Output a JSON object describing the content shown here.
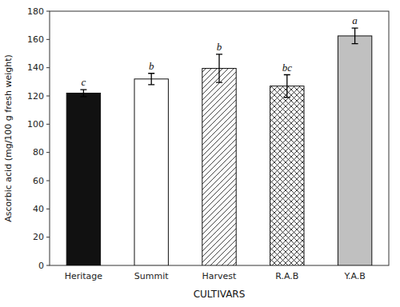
{
  "chart_data": {
    "type": "bar",
    "categories": [
      "Heritage",
      "Summit",
      "Harvest",
      "R.A.B",
      "Y.A.B"
    ],
    "values": [
      122.0,
      132.0,
      139.5,
      127.0,
      162.5
    ],
    "errors": [
      2.5,
      4.0,
      10.0,
      8.0,
      5.5
    ],
    "annotations": [
      "c",
      "b",
      "b",
      "bc",
      "a"
    ],
    "colors": [
      "#111111",
      "#ffffff",
      "#ffffff",
      "#ffffff",
      "#c0c0c0"
    ],
    "xlabel": "CULTIVARS",
    "ylabel": "Ascorbic acid (mg/100 g fresh weight)",
    "ylim": [
      0,
      180
    ],
    "yticks": [
      0,
      20,
      40,
      60,
      80,
      100,
      120,
      140,
      160,
      180
    ],
    "grid": false
  }
}
